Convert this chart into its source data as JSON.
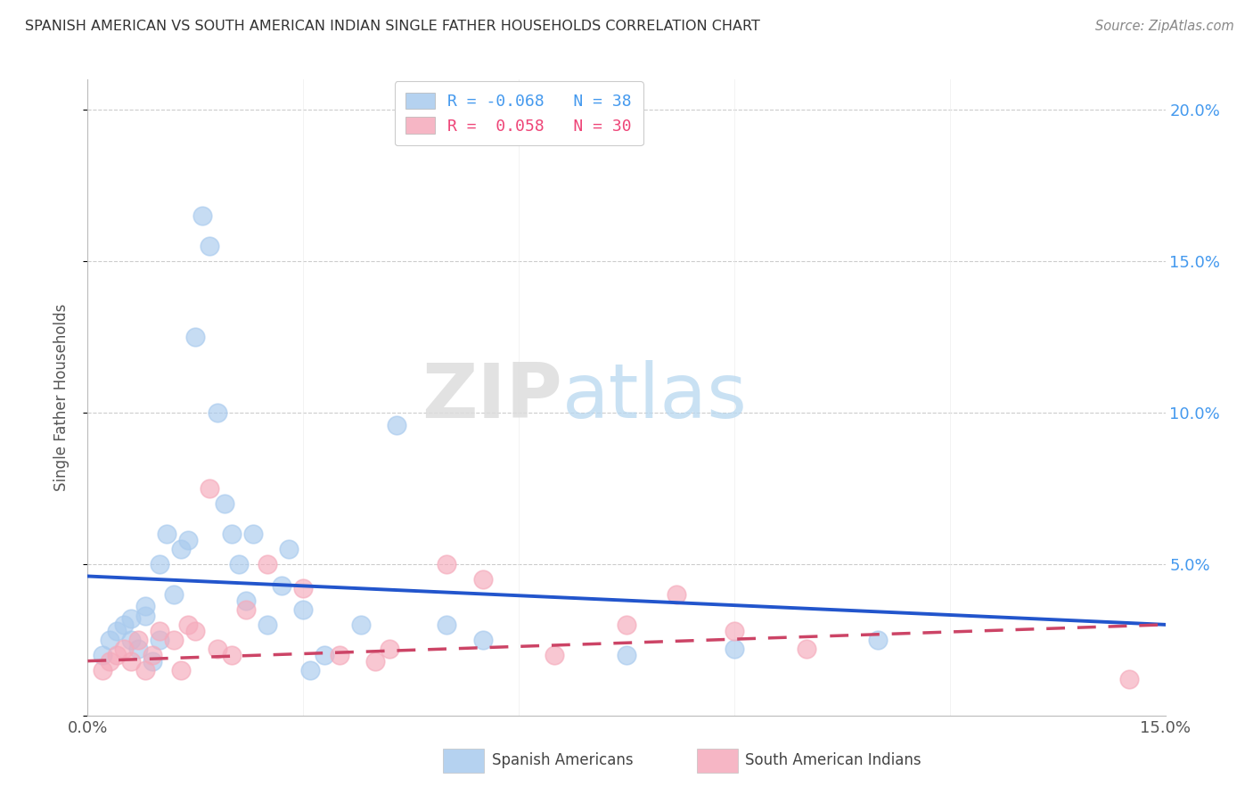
{
  "title": "SPANISH AMERICAN VS SOUTH AMERICAN INDIAN SINGLE FATHER HOUSEHOLDS CORRELATION CHART",
  "source": "Source: ZipAtlas.com",
  "ylabel": "Single Father Households",
  "xlim": [
    0.0,
    0.15
  ],
  "ylim": [
    0.0,
    0.21
  ],
  "watermark_zip": "ZIP",
  "watermark_atlas": "atlas",
  "legend_blue_R": "-0.068",
  "legend_blue_N": "38",
  "legend_pink_R": "0.058",
  "legend_pink_N": "30",
  "blue_color": "#A8CAEE",
  "pink_color": "#F5AABB",
  "trend_blue_color": "#2255CC",
  "trend_pink_color": "#CC4466",
  "blue_scatter_x": [
    0.002,
    0.003,
    0.004,
    0.005,
    0.006,
    0.006,
    0.007,
    0.008,
    0.008,
    0.009,
    0.01,
    0.01,
    0.011,
    0.012,
    0.013,
    0.014,
    0.015,
    0.016,
    0.017,
    0.018,
    0.019,
    0.02,
    0.021,
    0.022,
    0.023,
    0.025,
    0.027,
    0.028,
    0.03,
    0.031,
    0.033,
    0.038,
    0.043,
    0.05,
    0.055,
    0.075,
    0.09,
    0.11
  ],
  "blue_scatter_y": [
    0.02,
    0.025,
    0.028,
    0.03,
    0.025,
    0.032,
    0.022,
    0.033,
    0.036,
    0.018,
    0.025,
    0.05,
    0.06,
    0.04,
    0.055,
    0.058,
    0.125,
    0.165,
    0.155,
    0.1,
    0.07,
    0.06,
    0.05,
    0.038,
    0.06,
    0.03,
    0.043,
    0.055,
    0.035,
    0.015,
    0.02,
    0.03,
    0.096,
    0.03,
    0.025,
    0.02,
    0.022,
    0.025
  ],
  "pink_scatter_x": [
    0.002,
    0.003,
    0.004,
    0.005,
    0.006,
    0.007,
    0.008,
    0.009,
    0.01,
    0.012,
    0.013,
    0.014,
    0.015,
    0.017,
    0.018,
    0.02,
    0.022,
    0.025,
    0.03,
    0.035,
    0.04,
    0.042,
    0.05,
    0.055,
    0.065,
    0.075,
    0.082,
    0.09,
    0.1,
    0.145
  ],
  "pink_scatter_y": [
    0.015,
    0.018,
    0.02,
    0.022,
    0.018,
    0.025,
    0.015,
    0.02,
    0.028,
    0.025,
    0.015,
    0.03,
    0.028,
    0.075,
    0.022,
    0.02,
    0.035,
    0.05,
    0.042,
    0.02,
    0.018,
    0.022,
    0.05,
    0.045,
    0.02,
    0.03,
    0.04,
    0.028,
    0.022,
    0.012
  ],
  "blue_line_x": [
    0.0,
    0.15
  ],
  "blue_line_y": [
    0.046,
    0.03
  ],
  "pink_line_x": [
    0.0,
    0.15
  ],
  "pink_line_y": [
    0.018,
    0.03
  ]
}
